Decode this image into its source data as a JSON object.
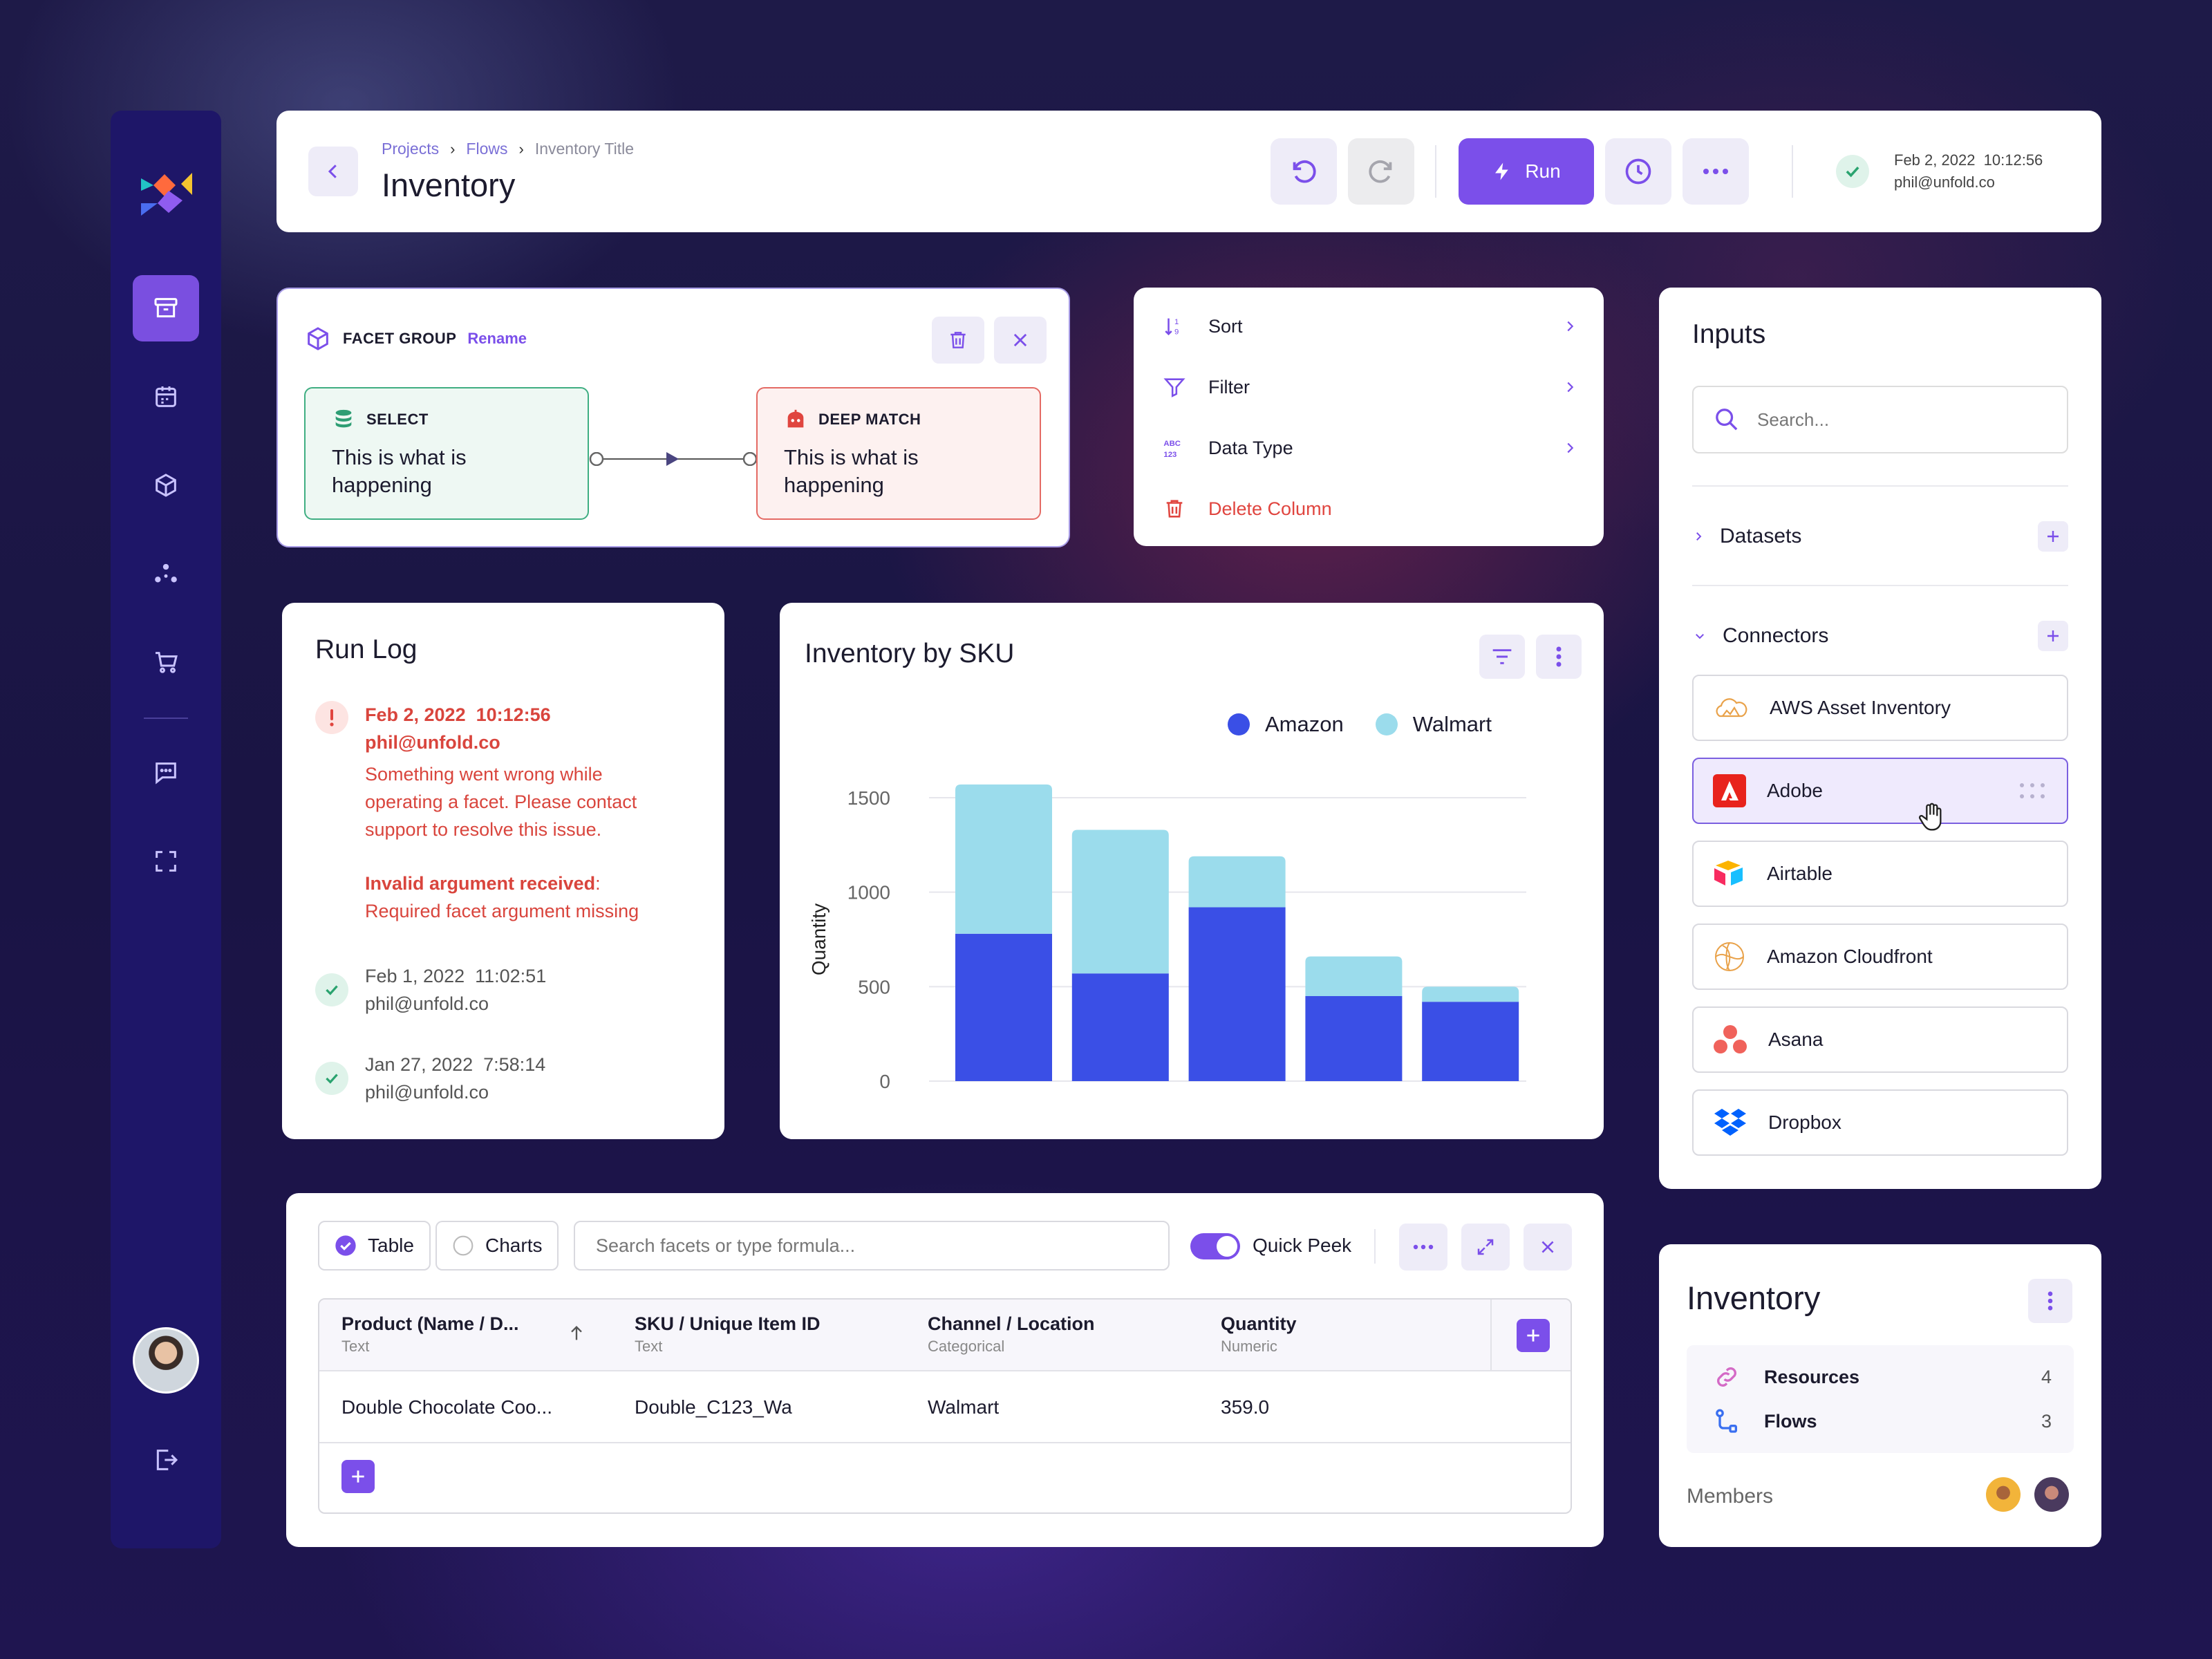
{
  "colors": {
    "accent": "#7b4fea",
    "amazon": "#3a4fe6",
    "walmart": "#9bdcec",
    "error": "#d9453d",
    "success": "#3fae82",
    "sidebar": "#1e1668"
  },
  "sidebar": {
    "items": [
      "archive-icon",
      "calendar-icon",
      "cube-icon",
      "network-icon",
      "cart-icon",
      "chat-icon",
      "focus-icon"
    ],
    "active": "archive-icon",
    "footer": [
      "user-avatar",
      "logout-icon"
    ]
  },
  "header": {
    "breadcrumb": [
      "Projects",
      "Flows",
      "Inventory Title"
    ],
    "title": "Inventory",
    "run_label": "Run",
    "status_date": "Feb 2, 2022  10:12:56",
    "status_user": "phil@unfold.co"
  },
  "facet_group": {
    "heading": "FACET GROUP",
    "rename": "Rename",
    "node_select": {
      "tag": "SELECT",
      "text": "This is what is happening"
    },
    "node_match": {
      "tag": "DEEP MATCH",
      "text": "This is what is happening"
    }
  },
  "menu": {
    "items": [
      {
        "label": "Sort",
        "icon": "sort-icon"
      },
      {
        "label": "Filter",
        "icon": "filter-icon"
      },
      {
        "label": "Data Type",
        "icon": "data-type-icon"
      },
      {
        "label": "Delete Column",
        "icon": "trash-icon"
      }
    ]
  },
  "inputs": {
    "title": "Inputs",
    "search_placeholder": "Search...",
    "datasets": "Datasets",
    "connectors": "Connectors",
    "connector_items": [
      "AWS Asset Inventory",
      "Adobe",
      "Airtable",
      "Amazon Cloudfront",
      "Asana",
      "Dropbox"
    ],
    "highlighted": "Adobe"
  },
  "run_log": {
    "title": "Run Log",
    "error": {
      "date": "Feb 2, 2022  10:12:56",
      "user": "phil@unfold.co",
      "message": "Something went wrong while operating a facet. Please contact support to resolve this issue.",
      "detail_label": "Invalid argument received",
      "detail_colon": ":",
      "detail_text": "Required facet argument missing"
    },
    "entries": [
      {
        "date": "Feb 1, 2022  11:02:51",
        "user": "phil@unfold.co"
      },
      {
        "date": "Jan 27, 2022  7:58:14",
        "user": "phil@unfold.co"
      }
    ]
  },
  "chart": {
    "title": "Inventory by SKU",
    "legend": [
      "Amazon",
      "Walmart"
    ]
  },
  "chart_data": {
    "type": "bar",
    "stacked": true,
    "categories": [
      "",
      "",
      "",
      "",
      ""
    ],
    "series": [
      {
        "name": "Amazon",
        "values": [
          780,
          570,
          920,
          450,
          420
        ]
      },
      {
        "name": "Walmart",
        "values": [
          790,
          760,
          270,
          210,
          80
        ]
      }
    ],
    "ylabel": "Quantity",
    "xlabel": "",
    "ylim": [
      0,
      1500
    ],
    "yticks": [
      0,
      500,
      1000,
      1500
    ],
    "grid": true,
    "legend_position": "top-right"
  },
  "table_panel": {
    "tab_table": "Table",
    "tab_charts": "Charts",
    "selected_tab": "Table",
    "formula_placeholder": "Search facets or type formula...",
    "quick_peek": "Quick Peek",
    "quick_peek_on": true,
    "columns": [
      {
        "name": "Product (Name / D...",
        "type": "Text"
      },
      {
        "name": "SKU / Unique Item ID",
        "type": "Text"
      },
      {
        "name": "Channel / Location",
        "type": "Categorical"
      },
      {
        "name": "Quantity",
        "type": "Numeric"
      }
    ],
    "rows": [
      [
        "Double Chocolate Coo...",
        "Double_C123_Wa",
        "Walmart",
        "359.0"
      ]
    ]
  },
  "inventory_card": {
    "title": "Inventory",
    "rows": [
      {
        "label": "Resources",
        "count": "4"
      },
      {
        "label": "Flows",
        "count": "3"
      }
    ],
    "members_label": "Members"
  }
}
